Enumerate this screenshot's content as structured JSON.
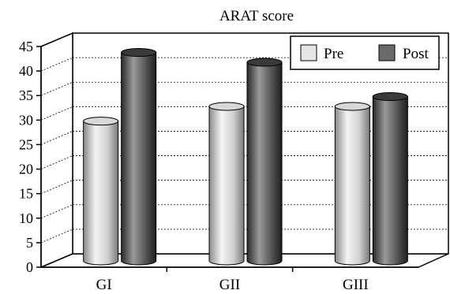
{
  "chart_data": {
    "type": "bar",
    "title": "ARAT score",
    "xlabel": "",
    "ylabel": "",
    "categories": [
      "GI",
      "GII",
      "GIII"
    ],
    "series": [
      {
        "name": "Pre",
        "values": [
          28.5,
          31.5,
          31.5
        ],
        "color": "#c8c8c8"
      },
      {
        "name": "Post",
        "values": [
          42.5,
          40.5,
          33.5
        ],
        "color": "#555555"
      }
    ],
    "ylim": [
      0,
      45
    ],
    "yticks": [
      0,
      5,
      10,
      15,
      20,
      25,
      30,
      35,
      40,
      45
    ],
    "yticks_labels": [
      "0",
      "5",
      "10",
      "15",
      "20",
      "25",
      "30",
      "35",
      "40",
      "45"
    ],
    "gridlines": true,
    "legend_position": "top-right",
    "style": "3d-cylinder"
  }
}
